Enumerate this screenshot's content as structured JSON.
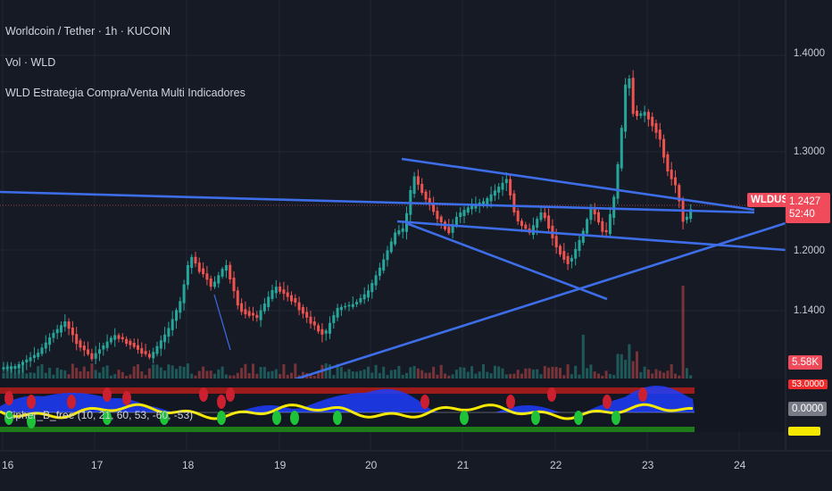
{
  "header": {
    "symbol_line": "Worldcoin / Tether · 1h · KUCOIN",
    "volume_line": "Vol · WLD",
    "strategy_line": "WLD Estrategia Compra/Venta Multi Indicadores",
    "oscillator_line": "Cipher_B_free (10, 21, 60, 53, -60, -53)"
  },
  "price_axis": {
    "labels": [
      "1.4000",
      "1.3000",
      "1.2000",
      "1.1400"
    ],
    "symbol_tag": "WLDUSDT",
    "last_price": "1.2427",
    "countdown": "52:40",
    "volume_tag": "5.58K",
    "oscillator_top_tag": "53.0000",
    "oscillator_zero_tag": "0.0000"
  },
  "time_axis": {
    "labels": [
      "16",
      "17",
      "18",
      "19",
      "20",
      "21",
      "22",
      "23",
      "24"
    ]
  },
  "colors": {
    "background": "#161a25",
    "bull": "#26a69a",
    "bear": "#ef5350",
    "trendline": "#3d6ee8",
    "last_price_tag": "#ef4b5b",
    "wave_blue": "#1d3dfc",
    "wave_yellow": "#f5e800",
    "dot_red": "#cc1f2f",
    "dot_green": "#1fc33a"
  }
}
